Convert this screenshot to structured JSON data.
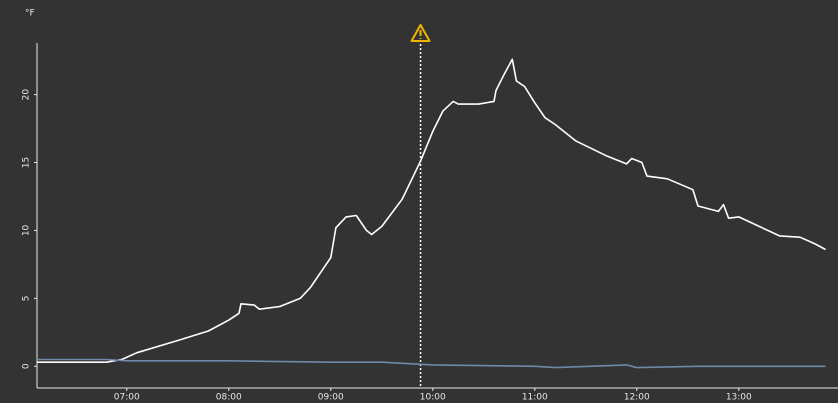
{
  "chart_data": {
    "type": "line",
    "unit_label": "°F",
    "xlim": [
      6.12,
      13.9
    ],
    "ylim": [
      -1.6,
      23.8
    ],
    "xticks": [
      {
        "value": 7,
        "label": "07:00"
      },
      {
        "value": 8,
        "label": "08:00"
      },
      {
        "value": 9,
        "label": "09:00"
      },
      {
        "value": 10,
        "label": "10:00"
      },
      {
        "value": 11,
        "label": "11:00"
      },
      {
        "value": 12,
        "label": "12:00"
      },
      {
        "value": 13,
        "label": "13:00"
      }
    ],
    "yticks": [
      0,
      5,
      10,
      15,
      20
    ],
    "marker_x": 9.88,
    "series": [
      {
        "color": "#ffffff",
        "x": [
          6.12,
          6.8,
          6.95,
          7.1,
          7.5,
          7.8,
          8.0,
          8.1,
          8.12,
          8.25,
          8.3,
          8.5,
          8.7,
          8.8,
          9.0,
          9.05,
          9.15,
          9.25,
          9.35,
          9.4,
          9.5,
          9.7,
          9.88,
          10.0,
          10.1,
          10.2,
          10.25,
          10.45,
          10.6,
          10.62,
          10.7,
          10.78,
          10.82,
          10.9,
          11.0,
          11.1,
          11.2,
          11.4,
          11.7,
          11.9,
          11.95,
          12.05,
          12.1,
          12.3,
          12.55,
          12.6,
          12.8,
          12.85,
          12.9,
          13.0,
          13.2,
          13.4,
          13.6,
          13.75,
          13.85
        ],
        "values": [
          0.3,
          0.3,
          0.5,
          1.0,
          1.9,
          2.6,
          3.4,
          3.9,
          4.6,
          4.5,
          4.2,
          4.4,
          5.0,
          5.8,
          8.0,
          10.2,
          11.0,
          11.1,
          10.0,
          9.7,
          10.3,
          12.3,
          15.1,
          17.3,
          18.8,
          19.5,
          19.3,
          19.3,
          19.5,
          20.3,
          21.5,
          22.6,
          21.0,
          20.6,
          19.4,
          18.3,
          17.8,
          16.6,
          15.5,
          14.9,
          15.3,
          15.0,
          14.0,
          13.8,
          13.0,
          11.8,
          11.4,
          11.9,
          10.9,
          11.0,
          10.3,
          9.6,
          9.5,
          9.0,
          8.6
        ]
      },
      {
        "color": "#6f88aa",
        "x": [
          6.12,
          6.8,
          7.0,
          8.0,
          9.0,
          9.5,
          10.0,
          11.0,
          11.2,
          11.9,
          12.0,
          12.6,
          13.0,
          13.85
        ],
        "values": [
          0.5,
          0.5,
          0.4,
          0.4,
          0.3,
          0.3,
          0.1,
          0.0,
          -0.1,
          0.1,
          -0.1,
          0.0,
          0.0,
          0.0
        ]
      }
    ]
  }
}
